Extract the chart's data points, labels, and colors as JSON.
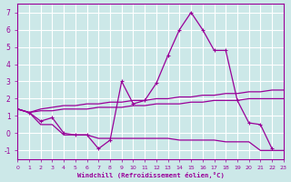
{
  "background_color": "#cce8e8",
  "grid_color": "#ffffff",
  "line_color": "#990099",
  "xlabel": "Windchill (Refroidissement éolien,°C)",
  "xlabel_color": "#990099",
  "tick_color": "#990099",
  "xlim": [
    0,
    23
  ],
  "ylim": [
    -1.5,
    7.5
  ],
  "yticks": [
    -1,
    0,
    1,
    2,
    3,
    4,
    5,
    6,
    7
  ],
  "xticks": [
    0,
    1,
    2,
    3,
    4,
    5,
    6,
    7,
    8,
    9,
    10,
    11,
    12,
    13,
    14,
    15,
    16,
    17,
    18,
    19,
    20,
    21,
    22,
    23
  ],
  "line1_x": [
    0,
    1,
    2,
    3,
    4,
    5,
    6,
    7,
    8,
    9,
    10,
    11,
    12,
    13,
    14,
    15,
    16,
    17,
    18,
    19,
    20,
    21,
    22
  ],
  "line1_y": [
    1.4,
    1.2,
    0.7,
    0.9,
    0.0,
    -0.1,
    -0.1,
    -0.9,
    -0.4,
    3.0,
    1.7,
    1.9,
    2.9,
    4.5,
    6.0,
    7.0,
    6.0,
    4.8,
    4.8,
    1.9,
    0.6,
    0.5,
    -0.9
  ],
  "line2_x": [
    0,
    1,
    2,
    3,
    4,
    5,
    6,
    7,
    8,
    9,
    10,
    11,
    12,
    13,
    14,
    15,
    16,
    17,
    18,
    19,
    20,
    21,
    22,
    23
  ],
  "line2_y": [
    1.4,
    1.2,
    1.4,
    1.5,
    1.6,
    1.6,
    1.7,
    1.7,
    1.8,
    1.8,
    1.9,
    1.9,
    2.0,
    2.0,
    2.1,
    2.1,
    2.2,
    2.2,
    2.3,
    2.3,
    2.4,
    2.4,
    2.5,
    2.5
  ],
  "line3_x": [
    0,
    1,
    2,
    3,
    4,
    5,
    6,
    7,
    8,
    9,
    10,
    11,
    12,
    13,
    14,
    15,
    16,
    17,
    18,
    19,
    20,
    21,
    22,
    23
  ],
  "line3_y": [
    1.4,
    1.2,
    1.3,
    1.3,
    1.4,
    1.4,
    1.4,
    1.5,
    1.5,
    1.5,
    1.6,
    1.6,
    1.7,
    1.7,
    1.7,
    1.8,
    1.8,
    1.9,
    1.9,
    1.9,
    2.0,
    2.0,
    2.0,
    2.0
  ],
  "line4_x": [
    0,
    1,
    2,
    3,
    4,
    5,
    6,
    7,
    8,
    9,
    10,
    11,
    12,
    13,
    14,
    15,
    16,
    17,
    18,
    19,
    20,
    21,
    22,
    23
  ],
  "line4_y": [
    1.4,
    1.2,
    0.5,
    0.5,
    -0.1,
    -0.1,
    -0.1,
    -0.3,
    -0.3,
    -0.3,
    -0.3,
    -0.3,
    -0.3,
    -0.3,
    -0.4,
    -0.4,
    -0.4,
    -0.4,
    -0.5,
    -0.5,
    -0.5,
    -1.0,
    -1.0,
    -1.0
  ]
}
